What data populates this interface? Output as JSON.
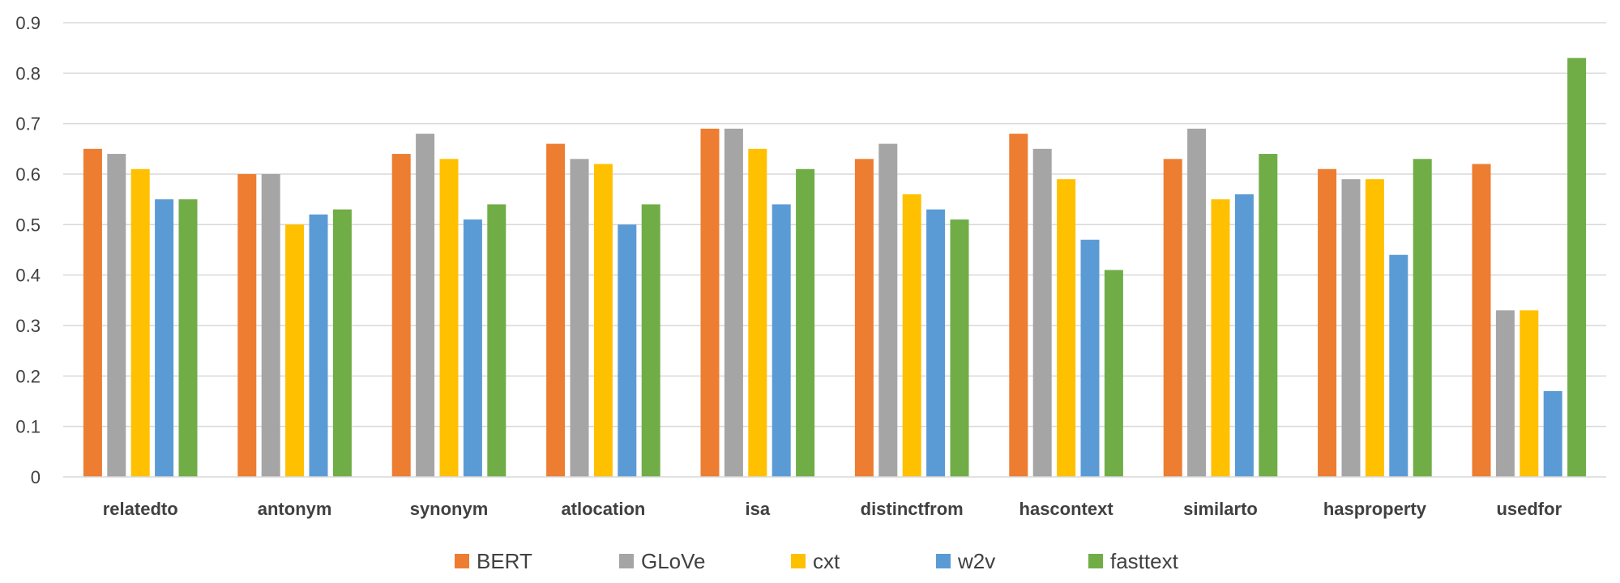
{
  "chart_data": {
    "type": "bar",
    "categories": [
      "relatedto",
      "antonym",
      "synonym",
      "atlocation",
      "isa",
      "distinctfrom",
      "hascontext",
      "similarto",
      "hasproperty",
      "usedfor"
    ],
    "series": [
      {
        "name": "BERT",
        "color": "#ED7D31",
        "values": [
          0.65,
          0.6,
          0.64,
          0.66,
          0.69,
          0.63,
          0.68,
          0.63,
          0.61,
          0.62
        ]
      },
      {
        "name": "GLoVe",
        "color": "#A5A5A5",
        "values": [
          0.64,
          0.6,
          0.68,
          0.63,
          0.69,
          0.66,
          0.65,
          0.69,
          0.59,
          0.33
        ]
      },
      {
        "name": "cxt",
        "color": "#FFC000",
        "values": [
          0.61,
          0.5,
          0.63,
          0.62,
          0.65,
          0.56,
          0.59,
          0.55,
          0.59,
          0.33
        ]
      },
      {
        "name": "w2v",
        "color": "#5B9BD5",
        "values": [
          0.55,
          0.52,
          0.51,
          0.5,
          0.54,
          0.53,
          0.47,
          0.56,
          0.44,
          0.17
        ]
      },
      {
        "name": "fasttext",
        "color": "#70AD47",
        "values": [
          0.55,
          0.53,
          0.54,
          0.54,
          0.61,
          0.51,
          0.41,
          0.64,
          0.63,
          0.83
        ]
      }
    ],
    "yticks": [
      "0",
      "0.1",
      "0.2",
      "0.3",
      "0.4",
      "0.5",
      "0.6",
      "0.7",
      "0.8",
      "0.9"
    ],
    "ylim": [
      0,
      0.9
    ],
    "grid": true,
    "legend_position": "bottom",
    "title": "",
    "xlabel": "",
    "ylabel": ""
  }
}
